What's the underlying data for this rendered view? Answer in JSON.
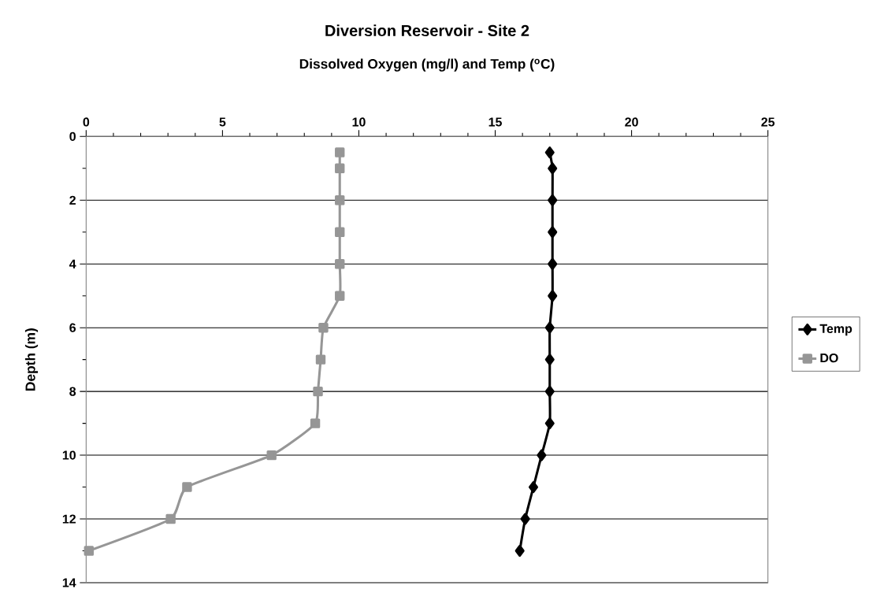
{
  "chart_data": {
    "type": "line",
    "title": "Diversion Reservoir - Site 2",
    "xlabel": "Dissolved Oxygen (mg/l) and Temp ($^{o}$C)",
    "ylabel": "Depth  (m)",
    "xlim": [
      0,
      25
    ],
    "xticks": [
      0,
      5,
      10,
      15,
      20,
      25
    ],
    "ylim": [
      14,
      0
    ],
    "yticks": [
      0,
      2,
      4,
      6,
      8,
      10,
      12,
      14
    ],
    "grid": "y",
    "legend": "right",
    "line_style": "solid",
    "series": [
      {
        "name": "Temp",
        "color": "#000000",
        "marker": "diamond",
        "x": [
          17.0,
          17.1,
          17.1,
          17.1,
          17.1,
          17.1,
          17.0,
          17.0,
          17.0,
          17.0,
          16.7,
          16.4,
          16.1,
          15.9
        ],
        "values": [
          0.5,
          1,
          2,
          3,
          4,
          5,
          6,
          7,
          8,
          9,
          10,
          11,
          12,
          13
        ]
      },
      {
        "name": "DO",
        "color": "#969696",
        "marker": "square",
        "x": [
          9.3,
          9.3,
          9.3,
          9.3,
          9.3,
          9.3,
          8.7,
          8.6,
          8.5,
          8.4,
          6.8,
          3.7,
          3.1,
          0.1
        ],
        "values": [
          0.5,
          1,
          2,
          3,
          4,
          5,
          6,
          7,
          8,
          9,
          10,
          11,
          12,
          13
        ]
      }
    ]
  }
}
